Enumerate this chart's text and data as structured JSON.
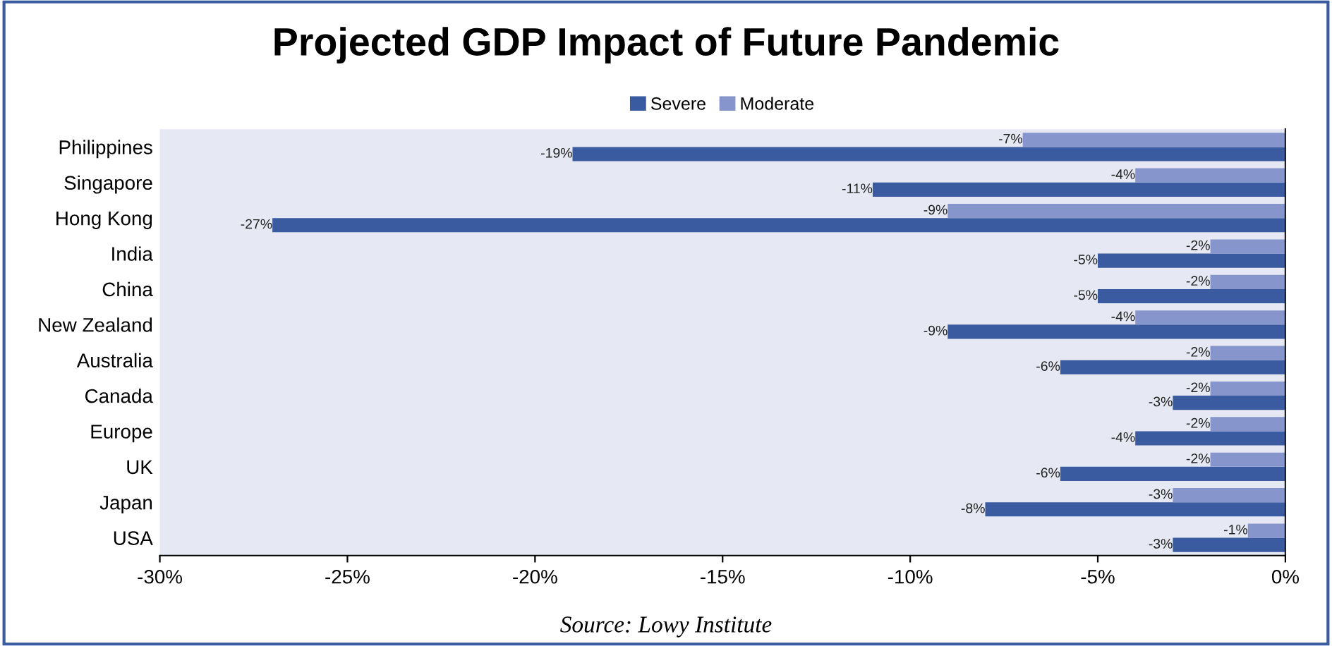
{
  "chart_data": {
    "type": "bar",
    "orientation": "horizontal",
    "title": "Projected GDP Impact of Future Pandemic",
    "categories": [
      "Philippines",
      "Singapore",
      "Hong Kong",
      "India",
      "China",
      "New Zealand",
      "Australia",
      "Canada",
      "Europe",
      "UK",
      "Japan",
      "USA"
    ],
    "series": [
      {
        "name": "Severe",
        "color": "#3a5ba0",
        "values": [
          -19,
          -11,
          -27,
          -5,
          -5,
          -9,
          -6,
          -3,
          -4,
          -6,
          -8,
          -3
        ],
        "value_labels": [
          "-19%",
          "-11%",
          "-27%",
          "-5%",
          "-5%",
          "-9%",
          "-6%",
          "-3%",
          "-4%",
          "-6%",
          "-8%",
          "-3%"
        ]
      },
      {
        "name": "Moderate",
        "color": "#8696cc",
        "values": [
          -7,
          -4,
          -9,
          -2,
          -2,
          -4,
          -2,
          -2,
          -2,
          -2,
          -3,
          -1
        ],
        "value_labels": [
          "-7%",
          "-4%",
          "-9%",
          "-2%",
          "-2%",
          "-4%",
          "-2%",
          "-2%",
          "-2%",
          "-2%",
          "-3%",
          "-1%"
        ]
      }
    ],
    "xlim": [
      -30,
      0
    ],
    "xticks": [
      {
        "value": -30,
        "label": "-30%"
      },
      {
        "value": -25,
        "label": "-25%"
      },
      {
        "value": -20,
        "label": "-20%"
      },
      {
        "value": -15,
        "label": "-15%"
      },
      {
        "value": -10,
        "label": "-10%"
      },
      {
        "value": -5,
        "label": "-5%"
      },
      {
        "value": 0,
        "label": "0%"
      }
    ],
    "grid": false,
    "legend": "top",
    "annotations": [
      "Source: Lowy Institute"
    ]
  }
}
